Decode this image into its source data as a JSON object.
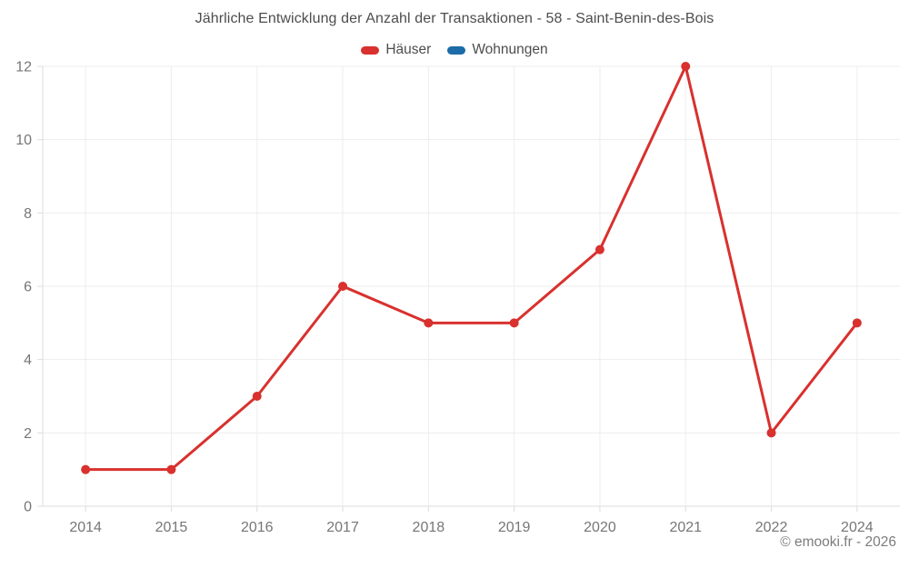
{
  "title": "Jährliche Entwicklung der Anzahl der Transaktionen - 58 - Saint-Benin-des-Bois",
  "footer": "© emooki.fr - 2026",
  "colors": {
    "grid": "#ededed",
    "axis": "#dcdcdc",
    "tick_label": "#767676",
    "title_text": "#4d4d4d"
  },
  "chart_data": {
    "type": "line",
    "title": "Jährliche Entwicklung der Anzahl der Transaktionen - 58 - Saint-Benin-des-Bois",
    "categories": [
      "2014",
      "2015",
      "2016",
      "2017",
      "2018",
      "2019",
      "2020",
      "2021",
      "2022",
      "2024"
    ],
    "series": [
      {
        "name": "Häuser",
        "color": "#d8312e",
        "values": [
          1,
          1,
          3,
          6,
          5,
          5,
          7,
          12,
          2,
          5
        ]
      },
      {
        "name": "Wohnungen",
        "color": "#1b6ca8",
        "values": []
      }
    ],
    "xlabel": "",
    "ylabel": "",
    "ylim": [
      0,
      12
    ],
    "yticks": [
      0,
      2,
      4,
      6,
      8,
      10,
      12
    ],
    "grid": true,
    "legend_position": "top"
  }
}
